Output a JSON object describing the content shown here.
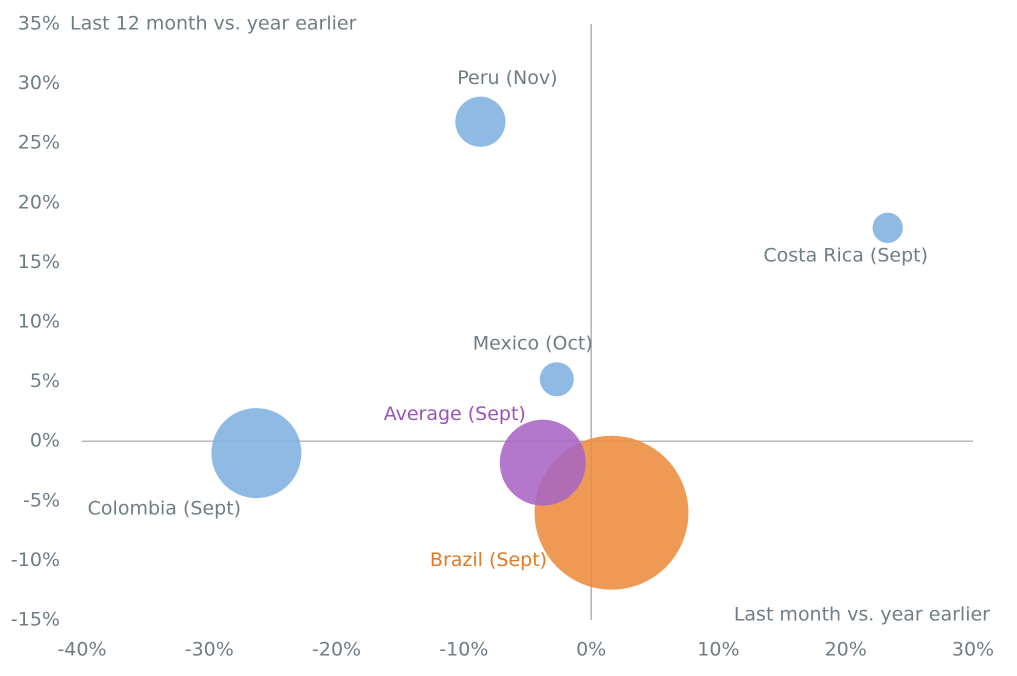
{
  "chart_data": {
    "type": "bubble",
    "x_label": "Last month vs. year earlier",
    "y_label": "Last 12 month vs. year earlier",
    "points": [
      {
        "label": "Peru (Nov)",
        "x": -8.7,
        "y": 26.8,
        "size": 63,
        "color": "#7eb0e0",
        "label_color": "#6f7d84"
      },
      {
        "label": "Costa Rica (Sept)",
        "x": 23.3,
        "y": 17.9,
        "size": 23,
        "color": "#7eb0e0",
        "label_color": "#6f7d84"
      },
      {
        "label": "Mexico (Oct)",
        "x": -2.7,
        "y": 5.2,
        "size": 29,
        "color": "#7eb0e0",
        "label_color": "#6f7d84"
      },
      {
        "label": "Colombia (Sept)",
        "x": -26.3,
        "y": -1.0,
        "size": 203,
        "color": "#7eb0e0",
        "label_color": "#6f7d84"
      },
      {
        "label": "Brazil (Sept)",
        "x": 1.6,
        "y": -6.0,
        "size": 593,
        "color": "#ec8c3e",
        "label_color": "#e07a26"
      },
      {
        "label": "Average (Sept)",
        "x": -3.8,
        "y": -1.8,
        "size": 185,
        "color": "#a865c4",
        "label_color": "#9a52b8"
      }
    ],
    "xlim": [
      -40,
      30
    ],
    "xticks": [
      {
        "value": -40,
        "label": "-40%"
      },
      {
        "value": -30,
        "label": "-30%"
      },
      {
        "value": -20,
        "label": "-20%"
      },
      {
        "value": -10,
        "label": "-10%"
      },
      {
        "value": 0,
        "label": "0%"
      },
      {
        "value": 10,
        "label": "10%"
      },
      {
        "value": 20,
        "label": "20%"
      },
      {
        "value": 30,
        "label": "30%"
      }
    ],
    "ylim": [
      -15,
      35
    ],
    "yticks": [
      {
        "value": -15,
        "label": "-15%"
      },
      {
        "value": -10,
        "label": "-10%"
      },
      {
        "value": -5,
        "label": "-5%"
      },
      {
        "value": 0,
        "label": "0%"
      },
      {
        "value": 5,
        "label": "5%"
      },
      {
        "value": 10,
        "label": "10%"
      },
      {
        "value": 15,
        "label": "15%"
      },
      {
        "value": 20,
        "label": "20%"
      },
      {
        "value": 25,
        "label": "25%"
      },
      {
        "value": 30,
        "label": "30%"
      },
      {
        "value": 35,
        "label": "35%"
      }
    ]
  }
}
